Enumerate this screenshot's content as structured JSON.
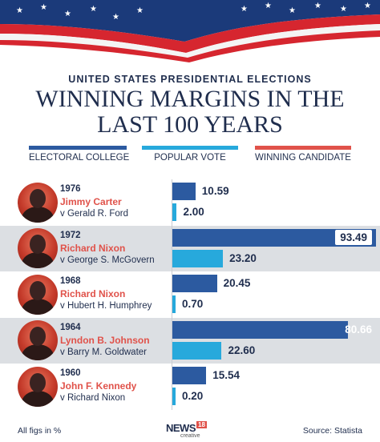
{
  "header": {
    "supertitle": "UNITED STATES PRESIDENTIAL ELECTIONS",
    "title_line1": "WINNING MARGINS IN THE",
    "title_line2": "LAST 100 YEARS"
  },
  "legend": [
    {
      "label": "ELECTORAL COLLEGE",
      "color": "#2c5aa0"
    },
    {
      "label": "POPULAR VOTE",
      "color": "#27a9dc"
    },
    {
      "label": "WINNING CANDIDATE",
      "color": "#e0524a"
    }
  ],
  "chart_data": {
    "type": "bar",
    "xlim": [
      0,
      100
    ],
    "rows": [
      {
        "year": "1976",
        "winner": "Jimmy Carter",
        "opponent": "v Gerald R. Ford",
        "electoral_college": 10.59,
        "popular_vote": 2.0,
        "ec_label": "10.59",
        "pv_label": "2.00"
      },
      {
        "year": "1972",
        "winner": "Richard Nixon",
        "opponent": "v George S. McGovern",
        "electoral_college": 93.49,
        "popular_vote": 23.2,
        "ec_label": "93.49",
        "pv_label": "23.20"
      },
      {
        "year": "1968",
        "winner": "Richard Nixon",
        "opponent": "v Hubert H. Humphrey",
        "electoral_college": 20.45,
        "popular_vote": 0.7,
        "ec_label": "20.45",
        "pv_label": "0.70"
      },
      {
        "year": "1964",
        "winner": "Lyndon B. Johnson",
        "opponent": "v Barry M. Goldwater",
        "electoral_college": 80.66,
        "popular_vote": 22.6,
        "ec_label": "80.66",
        "pv_label": "22.60"
      },
      {
        "year": "1960",
        "winner": "John F. Kennedy",
        "opponent": "v Richard Nixon",
        "electoral_college": 15.54,
        "popular_vote": 0.2,
        "ec_label": "15.54",
        "pv_label": "0.20"
      }
    ]
  },
  "footer": {
    "note": "All figs in %",
    "source": "Source: Statista",
    "logo_main": "NEWS",
    "logo_number": "18",
    "logo_sub": "creative"
  }
}
